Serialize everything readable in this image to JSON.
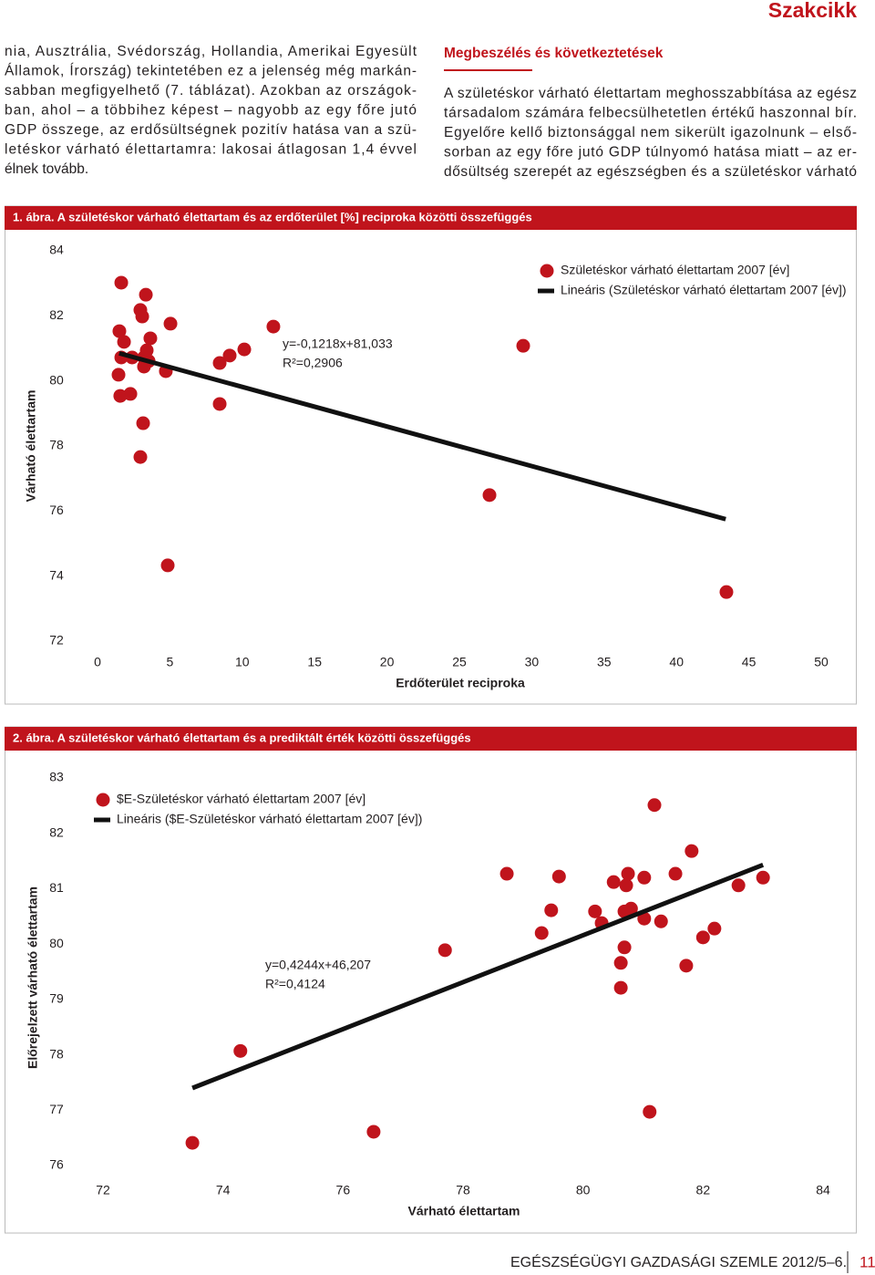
{
  "header": {
    "section": "Szakcikk"
  },
  "left_column": {
    "lines": [
      "nia, Ausztrália, Svédország, Hollandia, Amerikai Egyesült",
      "Államok, Írország) tekintetében ez a jelenség még markán-",
      "sabban megfigyelhető (7. táblázat). Azokban az országok-",
      "ban, ahol – a többihez képest – nagyobb az egy főre jutó",
      "GDP összege, az erdősültségnek pozitív hatása van a szü-",
      "letéskor várható élettartamra: lakosai átlagosan 1,4 évvel",
      "élnek tovább."
    ]
  },
  "right_column": {
    "heading": "Megbeszélés és következtetések",
    "lines": [
      "A születéskor várható élettartam meghosszabbítása az egész",
      "társadalom számára felbecsülhetetlen értékű haszonnal bír.",
      "Egyelőre kellő biztonsággal nem sikerült igazolnunk – első-",
      "sorban az egy főre jutó GDP túlnyomó hatása miatt – az er-",
      "dősültség szerepét az egészségben és a születéskor várható"
    ]
  },
  "chart_data": [
    {
      "type": "scatter",
      "title": "1. ábra. A születéskor várható élettartam és az erdőterület [%] reciproka közötti összefüggés",
      "xlabel": "Erdőterület reciproka",
      "ylabel": "Várható élettartam",
      "x": [
        1.64,
        3.34,
        2.96,
        3.09,
        5.04,
        1.51,
        1.83,
        3.65,
        3.4,
        1.64,
        2.39,
        3.21,
        3.53,
        3.21,
        4.72,
        1.45,
        1.57,
        2.27,
        3.15,
        2.96,
        8.44,
        8.44,
        9.13,
        10.14,
        12.15,
        29.41,
        27.08,
        4.85,
        43.45
      ],
      "series": [
        {
          "name": "Születéskor várható élettartam 2007 [év]",
          "color": "#c0141c",
          "values": [
            83.02,
            82.65,
            82.18,
            81.98,
            81.76,
            81.53,
            81.2,
            81.31,
            80.94,
            80.72,
            80.72,
            80.72,
            80.61,
            80.44,
            80.3,
            80.19,
            79.54,
            79.6,
            78.7,
            77.66,
            79.29,
            80.55,
            80.78,
            80.97,
            81.67,
            81.08,
            76.49,
            74.33,
            73.51
          ]
        },
        {
          "name": "Lineáris (Születéskor várható élettartam 2007 [év])",
          "color": "#111111",
          "type": "line",
          "x": [
            1.5,
            43.4
          ],
          "values": [
            80.85,
            75.75
          ]
        }
      ],
      "annotations": [
        "y=-0,1218x+81,033",
        "R²=0,2906"
      ],
      "xlim": [
        0,
        50
      ],
      "ylim": [
        72,
        84
      ],
      "xticks": [
        0,
        5,
        10,
        15,
        20,
        25,
        30,
        35,
        40,
        45,
        50
      ],
      "yticks": [
        72,
        74,
        76,
        78,
        80,
        82,
        84
      ],
      "legend": "upper right",
      "grid": false
    },
    {
      "type": "scatter",
      "title": "2. ábra. A születéskor várható élettartam és a prediktált érték közötti összefüggés",
      "xlabel": "Várható élettartam",
      "ylabel": "Előrejelzett várható élettartam",
      "x": [
        81.19,
        81.81,
        78.73,
        79.6,
        80.75,
        80.51,
        81.02,
        81.54,
        80.72,
        82.59,
        83.0,
        79.47,
        80.2,
        80.8,
        80.69,
        80.31,
        81.02,
        81.3,
        79.31,
        82.19,
        82.0,
        80.69,
        77.7,
        80.63,
        81.72,
        80.63,
        74.29,
        81.11,
        73.49,
        76.51
      ],
      "series": [
        {
          "name": "$E-Születéskor várható élettartam 2007 [év]",
          "color": "#c0141c",
          "values": [
            82.51,
            81.68,
            81.27,
            81.22,
            81.27,
            81.12,
            81.2,
            81.27,
            81.06,
            81.06,
            81.2,
            80.61,
            80.59,
            80.64,
            80.59,
            80.38,
            80.46,
            80.41,
            80.2,
            80.28,
            80.12,
            79.94,
            79.89,
            79.66,
            79.61,
            79.21,
            78.07,
            76.97,
            76.41,
            76.61
          ]
        },
        {
          "name": "Lineáris ($E-Születéskor várható élettartam 2007 [év])",
          "color": "#111111",
          "type": "line",
          "x": [
            73.49,
            83.0
          ],
          "values": [
            77.4,
            81.43
          ]
        }
      ],
      "annotations": [
        "y=0,4244x+46,207",
        "R²=0,4124"
      ],
      "xlim": [
        72,
        84
      ],
      "ylim": [
        76,
        83
      ],
      "xticks": [
        72,
        74,
        76,
        78,
        80,
        82,
        84
      ],
      "yticks": [
        76,
        77,
        78,
        79,
        80,
        81,
        82,
        83
      ],
      "legend": "upper left",
      "grid": false
    }
  ],
  "footer": {
    "journal": "EGÉSZSÉGÜGYI GAZDASÁGI SZEMLE 2012/5–6.",
    "page": "11"
  }
}
